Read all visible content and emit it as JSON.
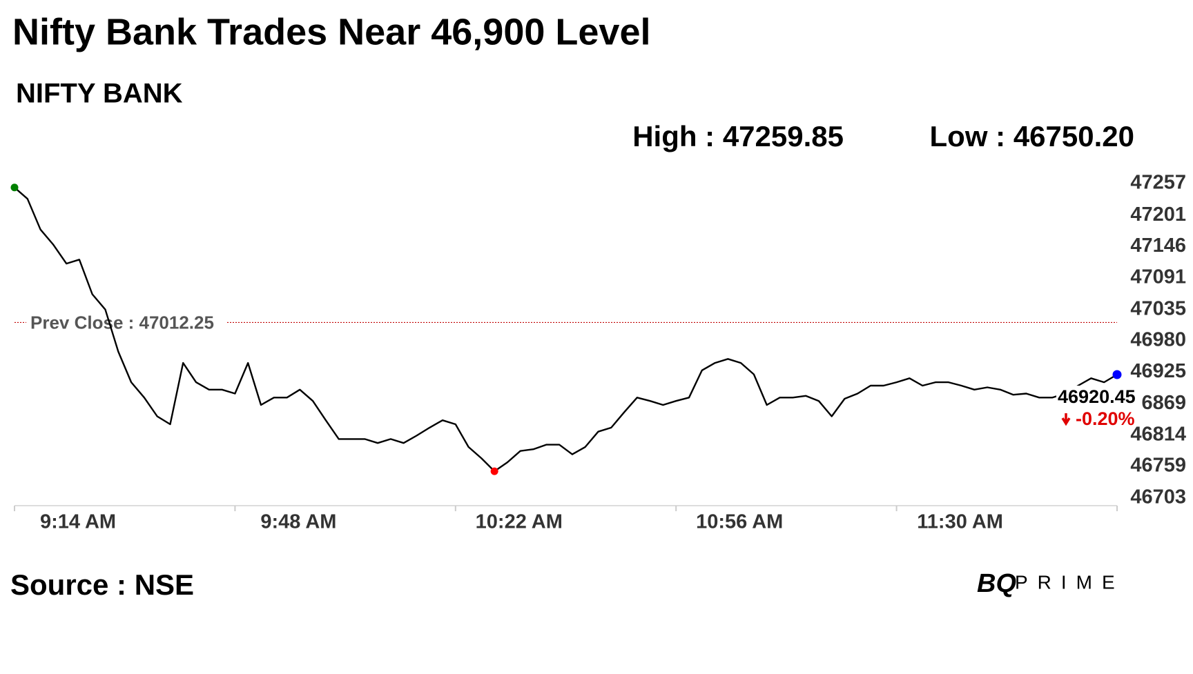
{
  "chart_data": {
    "type": "line",
    "title": "Nifty Bank Trades Near 46,900 Level",
    "subtitle": "NIFTY BANK",
    "high_text": "High : 47259.85",
    "low_text": "Low : 46750.20",
    "prev_close": {
      "value": 47012.25,
      "label": "Prev Close : 47012.25"
    },
    "change_label": "-0.20%",
    "source": "Source : NSE",
    "logo": [
      "BQ",
      "PRIME"
    ],
    "color": "#000000",
    "start_color": "#008000",
    "low_color": "#ff0000",
    "end_color": "#0000ff",
    "low_index": 37,
    "categories": [
      "9:14 AM",
      null,
      null,
      null,
      null,
      null,
      null,
      null,
      null,
      null,
      null,
      null,
      null,
      null,
      null,
      null,
      null,
      "9:48 AM",
      null,
      null,
      null,
      null,
      null,
      null,
      null,
      null,
      null,
      null,
      null,
      null,
      null,
      null,
      null,
      null,
      "10:22 AM",
      null,
      null,
      null,
      null,
      null,
      null,
      null,
      null,
      null,
      null,
      null,
      null,
      null,
      null,
      null,
      null,
      "10:56 AM",
      null,
      null,
      null,
      null,
      null,
      null,
      null,
      null,
      null,
      null,
      null,
      null,
      null,
      null,
      null,
      null,
      "11:30 AM",
      null,
      null,
      null,
      null,
      null,
      null,
      null,
      null,
      null,
      null,
      null,
      null,
      null,
      null,
      null,
      null,
      null
    ],
    "values": [
      47250,
      47230,
      47176,
      47149,
      47116,
      47123,
      47062,
      47035,
      46961,
      46907,
      46880,
      46847,
      46833,
      46941,
      46907,
      46894,
      46894,
      46887,
      46941,
      46867,
      46880,
      46880,
      46894,
      46874,
      46840,
      46807,
      46807,
      46807,
      46800,
      46807,
      46800,
      46813,
      46827,
      46840,
      46833,
      46793,
      46773,
      46750.2,
      46766,
      46786,
      46789,
      46797,
      46797,
      46780,
      46793,
      46820,
      46827,
      46854,
      46880,
      46874,
      46867,
      46874,
      46880,
      46928,
      46941,
      46948,
      46941,
      46921,
      46867,
      46880,
      46880,
      46883,
      46874,
      46847,
      46878,
      46887,
      46901,
      46901,
      46907,
      46914,
      46901,
      46907,
      46907,
      46901,
      46894,
      46898,
      46894,
      46885,
      46887,
      46880,
      46880,
      46887,
      46901,
      46914,
      46907,
      46920.45
    ],
    "ylim": [
      46703,
      47257
    ],
    "yticks": [
      47257,
      47201,
      47146,
      47091,
      47035,
      46980,
      46925,
      46869,
      46814,
      46759,
      46703
    ]
  }
}
